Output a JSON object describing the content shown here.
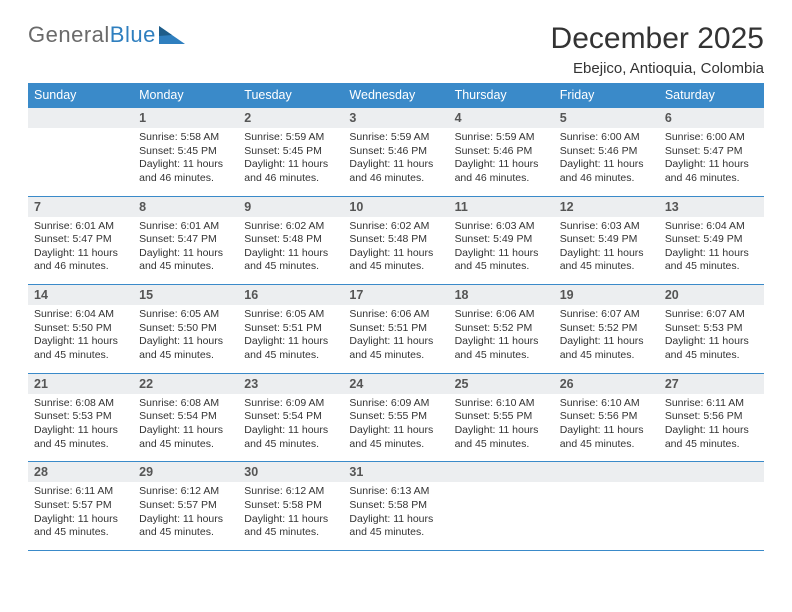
{
  "logo": {
    "text1": "General",
    "text2": "Blue"
  },
  "title": "December 2025",
  "location": "Ebejico, Antioquia, Colombia",
  "colors": {
    "header_bg": "#3a8ac9",
    "header_text": "#ffffff",
    "daynum_bg": "#eceef0",
    "row_border": "#3a8ac9",
    "body_text": "#333333",
    "logo_gray": "#6a6a6a",
    "logo_blue": "#2f7fbf"
  },
  "weekdays": [
    "Sunday",
    "Monday",
    "Tuesday",
    "Wednesday",
    "Thursday",
    "Friday",
    "Saturday"
  ],
  "start_offset": 1,
  "days": [
    {
      "n": "1",
      "sunrise": "5:58 AM",
      "sunset": "5:45 PM",
      "daylight": "11 hours and 46 minutes."
    },
    {
      "n": "2",
      "sunrise": "5:59 AM",
      "sunset": "5:45 PM",
      "daylight": "11 hours and 46 minutes."
    },
    {
      "n": "3",
      "sunrise": "5:59 AM",
      "sunset": "5:46 PM",
      "daylight": "11 hours and 46 minutes."
    },
    {
      "n": "4",
      "sunrise": "5:59 AM",
      "sunset": "5:46 PM",
      "daylight": "11 hours and 46 minutes."
    },
    {
      "n": "5",
      "sunrise": "6:00 AM",
      "sunset": "5:46 PM",
      "daylight": "11 hours and 46 minutes."
    },
    {
      "n": "6",
      "sunrise": "6:00 AM",
      "sunset": "5:47 PM",
      "daylight": "11 hours and 46 minutes."
    },
    {
      "n": "7",
      "sunrise": "6:01 AM",
      "sunset": "5:47 PM",
      "daylight": "11 hours and 46 minutes."
    },
    {
      "n": "8",
      "sunrise": "6:01 AM",
      "sunset": "5:47 PM",
      "daylight": "11 hours and 45 minutes."
    },
    {
      "n": "9",
      "sunrise": "6:02 AM",
      "sunset": "5:48 PM",
      "daylight": "11 hours and 45 minutes."
    },
    {
      "n": "10",
      "sunrise": "6:02 AM",
      "sunset": "5:48 PM",
      "daylight": "11 hours and 45 minutes."
    },
    {
      "n": "11",
      "sunrise": "6:03 AM",
      "sunset": "5:49 PM",
      "daylight": "11 hours and 45 minutes."
    },
    {
      "n": "12",
      "sunrise": "6:03 AM",
      "sunset": "5:49 PM",
      "daylight": "11 hours and 45 minutes."
    },
    {
      "n": "13",
      "sunrise": "6:04 AM",
      "sunset": "5:49 PM",
      "daylight": "11 hours and 45 minutes."
    },
    {
      "n": "14",
      "sunrise": "6:04 AM",
      "sunset": "5:50 PM",
      "daylight": "11 hours and 45 minutes."
    },
    {
      "n": "15",
      "sunrise": "6:05 AM",
      "sunset": "5:50 PM",
      "daylight": "11 hours and 45 minutes."
    },
    {
      "n": "16",
      "sunrise": "6:05 AM",
      "sunset": "5:51 PM",
      "daylight": "11 hours and 45 minutes."
    },
    {
      "n": "17",
      "sunrise": "6:06 AM",
      "sunset": "5:51 PM",
      "daylight": "11 hours and 45 minutes."
    },
    {
      "n": "18",
      "sunrise": "6:06 AM",
      "sunset": "5:52 PM",
      "daylight": "11 hours and 45 minutes."
    },
    {
      "n": "19",
      "sunrise": "6:07 AM",
      "sunset": "5:52 PM",
      "daylight": "11 hours and 45 minutes."
    },
    {
      "n": "20",
      "sunrise": "6:07 AM",
      "sunset": "5:53 PM",
      "daylight": "11 hours and 45 minutes."
    },
    {
      "n": "21",
      "sunrise": "6:08 AM",
      "sunset": "5:53 PM",
      "daylight": "11 hours and 45 minutes."
    },
    {
      "n": "22",
      "sunrise": "6:08 AM",
      "sunset": "5:54 PM",
      "daylight": "11 hours and 45 minutes."
    },
    {
      "n": "23",
      "sunrise": "6:09 AM",
      "sunset": "5:54 PM",
      "daylight": "11 hours and 45 minutes."
    },
    {
      "n": "24",
      "sunrise": "6:09 AM",
      "sunset": "5:55 PM",
      "daylight": "11 hours and 45 minutes."
    },
    {
      "n": "25",
      "sunrise": "6:10 AM",
      "sunset": "5:55 PM",
      "daylight": "11 hours and 45 minutes."
    },
    {
      "n": "26",
      "sunrise": "6:10 AM",
      "sunset": "5:56 PM",
      "daylight": "11 hours and 45 minutes."
    },
    {
      "n": "27",
      "sunrise": "6:11 AM",
      "sunset": "5:56 PM",
      "daylight": "11 hours and 45 minutes."
    },
    {
      "n": "28",
      "sunrise": "6:11 AM",
      "sunset": "5:57 PM",
      "daylight": "11 hours and 45 minutes."
    },
    {
      "n": "29",
      "sunrise": "6:12 AM",
      "sunset": "5:57 PM",
      "daylight": "11 hours and 45 minutes."
    },
    {
      "n": "30",
      "sunrise": "6:12 AM",
      "sunset": "5:58 PM",
      "daylight": "11 hours and 45 minutes."
    },
    {
      "n": "31",
      "sunrise": "6:13 AM",
      "sunset": "5:58 PM",
      "daylight": "11 hours and 45 minutes."
    }
  ],
  "labels": {
    "sunrise": "Sunrise:",
    "sunset": "Sunset:",
    "daylight": "Daylight:"
  }
}
